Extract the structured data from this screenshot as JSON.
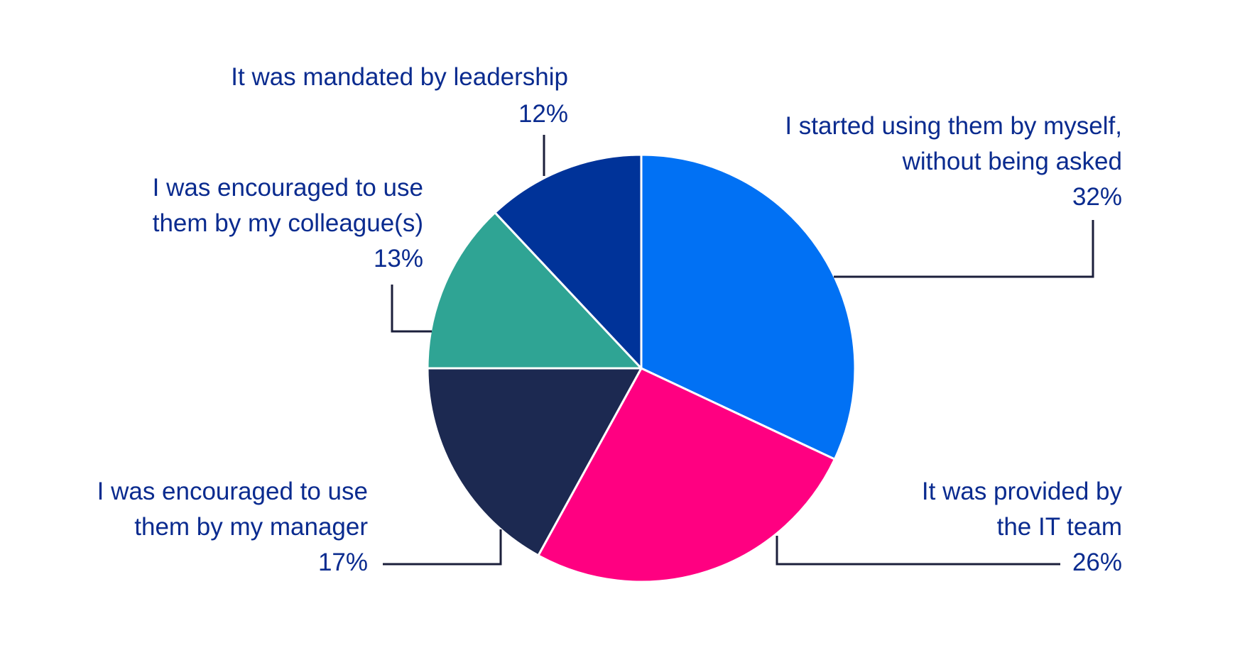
{
  "chart_data": {
    "type": "pie",
    "start_angle_deg": 0,
    "direction": "clockwise",
    "slices": [
      {
        "label_lines": [
          "I started using them by myself,",
          "without being asked"
        ],
        "pct_label": "32%",
        "value": 32,
        "color": "#0171f4"
      },
      {
        "label_lines": [
          "It was provided by",
          "the IT team"
        ],
        "pct_label": "26%",
        "value": 26,
        "color": "#ff0081"
      },
      {
        "label_lines": [
          "I was encouraged to use",
          "them by my manager"
        ],
        "pct_label": "17%",
        "value": 17,
        "color": "#1c2951"
      },
      {
        "label_lines": [
          "I was encouraged to use",
          "them by my colleague(s)"
        ],
        "pct_label": "13%",
        "value": 13,
        "color": "#2fa494"
      },
      {
        "label_lines": [
          "It was mandated by leadership"
        ],
        "pct_label": "12%",
        "value": 12,
        "color": "#003399"
      }
    ]
  }
}
